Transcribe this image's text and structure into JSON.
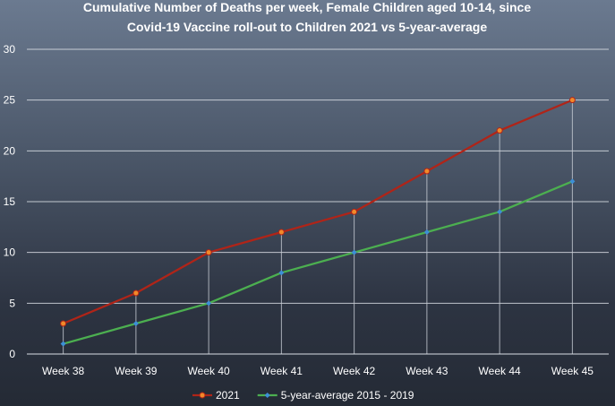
{
  "chart_data": {
    "type": "line",
    "title_lines": [
      "Cumulative Number of Deaths per week, Female Children aged 10-14, since",
      "Covid-19 Vaccine roll-out to Children 2021 vs 5-year-average"
    ],
    "categories": [
      "Week 38",
      "Week 39",
      "Week 40",
      "Week 41",
      "Week 42",
      "Week 43",
      "Week 44",
      "Week 45"
    ],
    "series": [
      {
        "name": "2021",
        "values": [
          3,
          6,
          10,
          12,
          14,
          18,
          22,
          25
        ],
        "color": "#b02418",
        "marker": "circle",
        "marker_color": "#f08a2a"
      },
      {
        "name": "5-year-average 2015 - 2019",
        "values": [
          1,
          3,
          5,
          8,
          10,
          12,
          14,
          17
        ],
        "color": "#4caf50",
        "marker": "diamond",
        "marker_color": "#3d8fd6"
      }
    ],
    "ylim": [
      0,
      30
    ],
    "yticks": [
      0,
      5,
      10,
      15,
      20,
      25,
      30
    ],
    "grid": true,
    "legend_position": "bottom"
  }
}
